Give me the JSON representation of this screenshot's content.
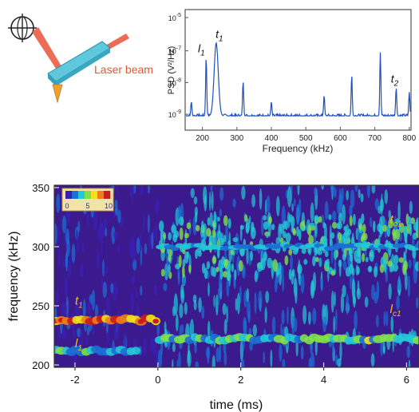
{
  "figure": {
    "schematic": {
      "label": "Laser beam",
      "colors": {
        "beam": "#e8543a",
        "cantilever": "#5fc8dc",
        "tip": "#f0a030"
      }
    },
    "annotations": {
      "psd": [
        {
          "text": "l1",
          "main": "l",
          "sub": "1",
          "x": 211
        },
        {
          "text": "t1",
          "main": "t",
          "sub": "1",
          "x": 240
        },
        {
          "text": "t2",
          "main": "t",
          "sub": "2",
          "x": 762
        }
      ],
      "spectrogram": [
        {
          "text": "t1",
          "main": "t",
          "sub": "1",
          "time": -2.0,
          "freq": 251
        },
        {
          "text": "l1",
          "main": "l",
          "sub": "1",
          "time": -2.0,
          "freq": 215
        },
        {
          "text": "tc1",
          "main": "t",
          "sub": "c1",
          "time": 5.6,
          "freq": 320
        },
        {
          "text": "lc1",
          "main": "l",
          "sub": "c1",
          "time": 5.6,
          "freq": 244
        }
      ]
    },
    "colorbar": {
      "ticks": [
        "0",
        "5",
        "10"
      ],
      "colors": [
        "#3a1fb4",
        "#1b6fd6",
        "#22c8d6",
        "#7fe04a",
        "#f2e21c",
        "#f07d1c",
        "#c81e1e"
      ]
    }
  },
  "chart_data": [
    {
      "type": "line",
      "ylabel": "PSD (V²/Hz)",
      "xlabel": "Frequency (kHz)",
      "xlim": [
        150,
        805
      ],
      "ylim_log10": [
        -9.5,
        -5.7
      ],
      "yscale": "log",
      "xticks": [
        "200",
        "300",
        "400",
        "500",
        "600",
        "700",
        "800"
      ],
      "yticks": [
        {
          "base": "10",
          "exp": "-5",
          "value": -5
        },
        {
          "base": "10",
          "exp": "-7",
          "value": -7
        },
        {
          "base": "10",
          "exp": "-8",
          "value": -8
        },
        {
          "base": "10",
          "exp": "-9",
          "value": -9
        }
      ],
      "baseline_log10": -9.05,
      "color": "#1f4fbf",
      "peaks": [
        {
          "x": 168,
          "log10": -8.6
        },
        {
          "x": 211,
          "log10": -7.2
        },
        {
          "x": 240,
          "log10": -6.75
        },
        {
          "x": 318,
          "log10": -7.95
        },
        {
          "x": 400,
          "log10": -8.6
        },
        {
          "x": 553,
          "log10": -8.4
        },
        {
          "x": 633,
          "log10": -7.75
        },
        {
          "x": 716,
          "log10": -7.05
        },
        {
          "x": 762,
          "log10": -8.15
        },
        {
          "x": 800,
          "log10": -8.3
        }
      ]
    },
    {
      "type": "heatmap",
      "xlabel": "time (ms)",
      "ylabel": "frequency (kHz)",
      "xlim": [
        -2.5,
        6.3
      ],
      "ylim": [
        198,
        352
      ],
      "xticks": [
        "-2",
        "0",
        "2",
        "4",
        "6"
      ],
      "yticks": [
        "200",
        "250",
        "300",
        "350"
      ],
      "color_range": [
        0,
        10
      ],
      "bands": [
        {
          "name": "t1",
          "t_start": -2.5,
          "t_end": 0.0,
          "freq": 238,
          "level": 10
        },
        {
          "name": "l1",
          "t_start": -2.5,
          "t_end": -0.5,
          "freq": 212,
          "level": 5
        },
        {
          "name": "lc1",
          "t_start": 0.0,
          "t_end": 6.3,
          "freq": 222,
          "level": 6
        },
        {
          "name": "tc1",
          "t_start": 0.0,
          "t_end": 6.3,
          "freq": 300,
          "level": 4
        }
      ]
    }
  ]
}
